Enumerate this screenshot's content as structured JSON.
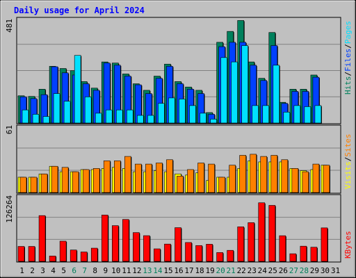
{
  "title": "Daily usage for April 2024",
  "colors": {
    "background": "#c0c0c0",
    "plot": "#c0c0c0",
    "hits": "#00805c",
    "files": "#0040ff",
    "pages": "#00e0ff",
    "visits": "#ffff00",
    "sites": "#ff8000",
    "kbytes": "#ff0000",
    "title": "#0000ff",
    "weekend": "#00805c",
    "weekday": "#000000"
  },
  "legend": {
    "top": [
      {
        "label": "Hits",
        "color": "#00805c"
      },
      {
        "label": "/",
        "color": "#000000"
      },
      {
        "label": "Files",
        "color": "#0040ff"
      },
      {
        "label": "/",
        "color": "#000000"
      },
      {
        "label": "Pages",
        "color": "#00e0ff"
      }
    ],
    "middle": [
      {
        "label": "Visits",
        "color": "#ffff00"
      },
      {
        "label": "/",
        "color": "#000000"
      },
      {
        "label": "Sites",
        "color": "#ff8000"
      }
    ],
    "bottom": [
      {
        "label": "KBytes",
        "color": "#ff0000"
      }
    ]
  },
  "chart_data": [
    {
      "type": "bar",
      "title": "Daily usage for April 2024",
      "panel": "hits-files-pages",
      "ymax_label": "481",
      "ylim": [
        0,
        481
      ],
      "categories": [
        "1",
        "2",
        "3",
        "4",
        "5",
        "6",
        "7",
        "8",
        "9",
        "10",
        "11",
        "12",
        "13",
        "14",
        "15",
        "16",
        "17",
        "18",
        "19",
        "20",
        "21",
        "22",
        "23",
        "24",
        "25",
        "26",
        "27",
        "28",
        "29",
        "30",
        "31"
      ],
      "weekend_days": [
        "6",
        "7",
        "13",
        "14",
        "20",
        "21",
        "27",
        "28"
      ],
      "series": [
        {
          "name": "Hits",
          "values": [
            125,
            122,
            155,
            260,
            250,
            240,
            190,
            160,
            280,
            275,
            225,
            180,
            150,
            215,
            270,
            190,
            165,
            150,
            48,
            370,
            420,
            470,
            280,
            205,
            415,
            95,
            155,
            155,
            220,
            0,
            0
          ]
        },
        {
          "name": "Files",
          "values": [
            120,
            112,
            130,
            258,
            230,
            220,
            180,
            150,
            275,
            265,
            215,
            175,
            135,
            205,
            260,
            180,
            155,
            135,
            40,
            350,
            370,
            370,
            265,
            195,
            355,
            90,
            145,
            145,
            210,
            0,
            0
          ]
        },
        {
          "name": "Pages",
          "values": [
            60,
            40,
            30,
            135,
            100,
            310,
            120,
            45,
            60,
            60,
            60,
            35,
            35,
            90,
            115,
            110,
            80,
            45,
            18,
            300,
            280,
            355,
            80,
            80,
            265,
            50,
            80,
            75,
            80,
            0,
            0
          ]
        }
      ]
    },
    {
      "type": "bar",
      "panel": "visits-sites",
      "ymax_label": "61",
      "ylim": [
        0,
        61
      ],
      "categories": [
        "1",
        "2",
        "3",
        "4",
        "5",
        "6",
        "7",
        "8",
        "9",
        "10",
        "11",
        "12",
        "13",
        "14",
        "15",
        "16",
        "17",
        "18",
        "19",
        "20",
        "21",
        "22",
        "23",
        "24",
        "25",
        "26",
        "27",
        "28",
        "29",
        "30",
        "31"
      ],
      "series": [
        {
          "name": "Visits",
          "values": [
            14,
            14,
            17,
            24,
            19,
            19,
            21,
            21,
            22,
            23,
            22,
            19,
            19,
            20,
            19,
            17,
            16,
            18,
            11,
            14,
            14,
            22,
            29,
            28,
            28,
            28,
            22,
            20,
            21,
            25,
            0
          ]
        },
        {
          "name": "Sites",
          "values": [
            14,
            14,
            17,
            24,
            23,
            19,
            21,
            22,
            29,
            29,
            33,
            26,
            26,
            27,
            30,
            15,
            21,
            27,
            26,
            14,
            25,
            34,
            35,
            33,
            34,
            30,
            22,
            19,
            26,
            25,
            0
          ]
        }
      ]
    },
    {
      "type": "bar",
      "panel": "kbytes",
      "ymax_label": "126264",
      "ylim": [
        0,
        126264
      ],
      "categories": [
        "1",
        "2",
        "3",
        "4",
        "5",
        "6",
        "7",
        "8",
        "9",
        "10",
        "11",
        "12",
        "13",
        "14",
        "15",
        "16",
        "17",
        "18",
        "19",
        "20",
        "21",
        "22",
        "23",
        "24",
        "25",
        "26",
        "27",
        "28",
        "29",
        "30",
        "31"
      ],
      "series": [
        {
          "name": "KBytes",
          "values": [
            28500,
            28500,
            87500,
            10200,
            38600,
            21700,
            17900,
            25200,
            88500,
            68300,
            80100,
            55000,
            49100,
            23900,
            33000,
            64400,
            36000,
            30200,
            32700,
            16800,
            21000,
            66000,
            74000,
            112000,
            107000,
            49000,
            14500,
            29000,
            27000,
            64000,
            0
          ]
        }
      ]
    }
  ]
}
